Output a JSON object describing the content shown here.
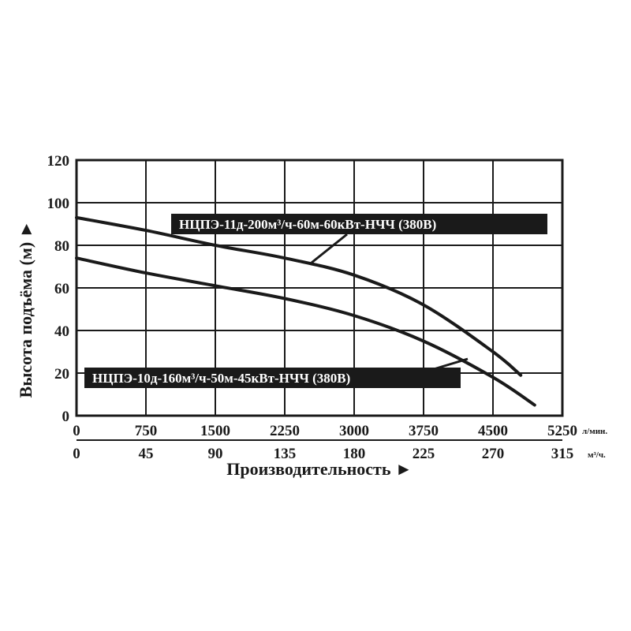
{
  "chart_data": {
    "type": "line",
    "xlabel": "Производительность ►",
    "ylabel": "Высота подъёма (м) ►",
    "x_unit": "л/мин.",
    "x2_unit": "м³/ч.",
    "xlim": [
      0,
      5250
    ],
    "ylim": [
      0,
      120
    ],
    "x_ticks": [
      "0",
      "750",
      "1500",
      "2250",
      "3000",
      "3750",
      "4500",
      "5250"
    ],
    "x2_ticks": [
      "0",
      "45",
      "90",
      "135",
      "180",
      "225",
      "270",
      "315"
    ],
    "y_ticks": [
      "0",
      "20",
      "40",
      "60",
      "80",
      "100",
      "120"
    ],
    "grid": true,
    "series": [
      {
        "name": "НЦПЭ-11д-200м³/ч-60м-60кВт-НЧЧ (380В)",
        "x": [
          0,
          750,
          1500,
          2250,
          3000,
          3750,
          4500,
          4800
        ],
        "y": [
          93,
          87,
          80,
          74,
          66,
          52,
          30,
          19
        ]
      },
      {
        "name": "НЦПЭ-10д-160м³/ч-50м-45кВт-НЧЧ (380В)",
        "x": [
          0,
          750,
          1500,
          2250,
          3000,
          3750,
          4500,
          4950
        ],
        "y": [
          74,
          67,
          61,
          55,
          47,
          35,
          18,
          5
        ]
      }
    ]
  }
}
